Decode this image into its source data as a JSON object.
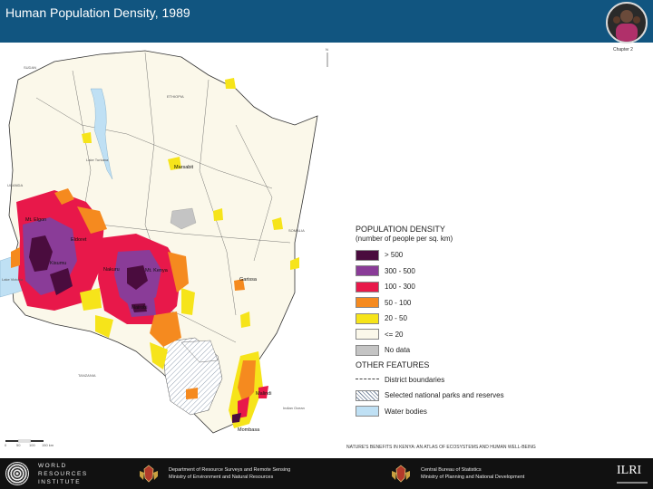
{
  "header": {
    "title": "Human Population Density, 1989",
    "chapter": "Chapter 2",
    "background_color": "#115580"
  },
  "map": {
    "country_labels": [
      "SUDAN",
      "ETHIOPIA",
      "UGANDA",
      "SOMALIA",
      "TANZANIA"
    ],
    "water_labels": [
      "Lake Turkana",
      "Lake Victoria",
      "Indian Ocean"
    ],
    "towns": [
      "Mt. Elgon",
      "Eldoret",
      "Kisumu",
      "Nakuru",
      "Mt. Kenya",
      "Nairobi",
      "Marsabit",
      "Garissa",
      "Malindi",
      "Mombasa"
    ],
    "scale_labels": [
      "0",
      "50",
      "100",
      "150 km"
    ],
    "north_label": "N"
  },
  "legend": {
    "title": "POPULATION DENSITY",
    "subtitle": "(number of people per sq. km)",
    "classes": [
      {
        "label": "> 500",
        "color": "#4a0c3e"
      },
      {
        "label": "300 - 500",
        "color": "#8a3c98"
      },
      {
        "label": "100 - 300",
        "color": "#e8184a"
      },
      {
        "label": "50 - 100",
        "color": "#f58a1f"
      },
      {
        "label": "20 - 50",
        "color": "#f6e41a"
      },
      {
        "label": "<= 20",
        "color": "#fbf8ea"
      },
      {
        "label": "No data",
        "color": "#c4c4c4"
      }
    ],
    "other_title": "OTHER FEATURES",
    "features": [
      {
        "label": "District boundaries",
        "icon": "dashed-line-icon"
      },
      {
        "label": "Selected national parks and reserves",
        "icon": "hatch-pattern-icon"
      },
      {
        "label": "Water bodies",
        "color": "#bfe0f4"
      }
    ]
  },
  "source": "NATURE'S BENEFITS IN KENYA: AN ATLAS OF ECOSYSTEMS AND HUMAN WELL-BEING",
  "footer": {
    "wri_lines": [
      "WORLD",
      "RESOURCES",
      "INSTITUTE"
    ],
    "ministry1_lines": [
      "Department of Resource Surveys and Remote Sensing",
      "Ministry of Environment and Natural Resources"
    ],
    "ministry2_lines": [
      "Central Bureau of Statistics",
      "Ministry of Planning and National Development"
    ],
    "ilri": "ILRI"
  }
}
